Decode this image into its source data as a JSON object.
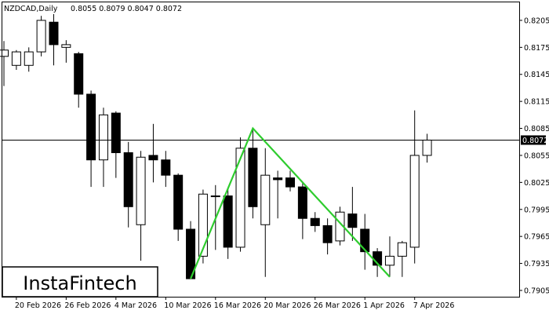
{
  "header": {
    "symbol_label": "NZDCAD,Daily",
    "ohlc_label": "0.8055 0.8079 0.8047 0.8072"
  },
  "brand": {
    "logo_text": "InstaFintech"
  },
  "price_tag": {
    "label": "0.8072"
  },
  "colors": {
    "bull_candle": "#ffffff",
    "bear_candle": "#000000",
    "pattern_line": "#2ecc2e",
    "price_tag_bg": "#000000"
  },
  "chart_data": {
    "type": "candlestick",
    "symbol": "NZDCAD",
    "timeframe": "Daily",
    "ylim": [
      0.7898,
      0.8225
    ],
    "y_ticks": [
      0.8205,
      0.8175,
      0.8145,
      0.8115,
      0.8085,
      0.8055,
      0.8025,
      0.7995,
      0.7965,
      0.7935,
      0.7905
    ],
    "y_tick_labels": [
      "0.8205",
      "0.8175",
      "0.8145",
      "0.8115",
      "0.8085",
      "0.8055",
      "0.8025",
      "0.7995",
      "0.7965",
      "0.7935",
      "0.7905"
    ],
    "x_tick_labels": [
      {
        "label": "20 Feb 2026",
        "index": 1
      },
      {
        "label": "26 Feb 2026",
        "index": 5
      },
      {
        "label": "4 Mar 2026",
        "index": 9
      },
      {
        "label": "10 Mar 2026",
        "index": 13
      },
      {
        "label": "16 Mar 2026",
        "index": 17
      },
      {
        "label": "20 Mar 2026",
        "index": 21
      },
      {
        "label": "26 Mar 2026",
        "index": 25
      },
      {
        "label": "1 Apr 2026",
        "index": 29
      },
      {
        "label": "7 Apr 2026",
        "index": 33
      }
    ],
    "current_price": 0.8072,
    "candles": [
      {
        "o": 0.8165,
        "h": 0.8182,
        "l": 0.8132,
        "c": 0.8172
      },
      {
        "o": 0.8155,
        "h": 0.8172,
        "l": 0.815,
        "c": 0.817
      },
      {
        "o": 0.8155,
        "h": 0.8175,
        "l": 0.8148,
        "c": 0.817
      },
      {
        "o": 0.817,
        "h": 0.821,
        "l": 0.8165,
        "c": 0.8205
      },
      {
        "o": 0.8203,
        "h": 0.8212,
        "l": 0.8155,
        "c": 0.8178
      },
      {
        "o": 0.8175,
        "h": 0.8183,
        "l": 0.8158,
        "c": 0.8178
      },
      {
        "o": 0.8168,
        "h": 0.817,
        "l": 0.8108,
        "c": 0.8123
      },
      {
        "o": 0.8123,
        "h": 0.8127,
        "l": 0.802,
        "c": 0.805
      },
      {
        "o": 0.805,
        "h": 0.8108,
        "l": 0.802,
        "c": 0.81
      },
      {
        "o": 0.8102,
        "h": 0.8104,
        "l": 0.803,
        "c": 0.8058
      },
      {
        "o": 0.8058,
        "h": 0.807,
        "l": 0.7975,
        "c": 0.7998
      },
      {
        "o": 0.7978,
        "h": 0.806,
        "l": 0.7938,
        "c": 0.8053
      },
      {
        "o": 0.8055,
        "h": 0.809,
        "l": 0.8025,
        "c": 0.805
      },
      {
        "o": 0.805,
        "h": 0.806,
        "l": 0.802,
        "c": 0.8033
      },
      {
        "o": 0.8033,
        "h": 0.8035,
        "l": 0.796,
        "c": 0.7973
      },
      {
        "o": 0.7973,
        "h": 0.7982,
        "l": 0.7918,
        "c": 0.7918
      },
      {
        "o": 0.7943,
        "h": 0.8017,
        "l": 0.7935,
        "c": 0.8012
      },
      {
        "o": 0.801,
        "h": 0.8022,
        "l": 0.795,
        "c": 0.801
      },
      {
        "o": 0.801,
        "h": 0.8018,
        "l": 0.794,
        "c": 0.7953
      },
      {
        "o": 0.7953,
        "h": 0.8075,
        "l": 0.7948,
        "c": 0.8063
      },
      {
        "o": 0.8063,
        "h": 0.8085,
        "l": 0.7985,
        "c": 0.7998
      },
      {
        "o": 0.7978,
        "h": 0.8063,
        "l": 0.792,
        "c": 0.8033
      },
      {
        "o": 0.803,
        "h": 0.8038,
        "l": 0.7985,
        "c": 0.8028
      },
      {
        "o": 0.803,
        "h": 0.8038,
        "l": 0.8015,
        "c": 0.802
      },
      {
        "o": 0.802,
        "h": 0.8025,
        "l": 0.7962,
        "c": 0.7985
      },
      {
        "o": 0.7985,
        "h": 0.7992,
        "l": 0.797,
        "c": 0.7977
      },
      {
        "o": 0.7977,
        "h": 0.7985,
        "l": 0.7945,
        "c": 0.7958
      },
      {
        "o": 0.796,
        "h": 0.7998,
        "l": 0.7955,
        "c": 0.7992
      },
      {
        "o": 0.799,
        "h": 0.802,
        "l": 0.796,
        "c": 0.7975
      },
      {
        "o": 0.7973,
        "h": 0.799,
        "l": 0.7928,
        "c": 0.7948
      },
      {
        "o": 0.7948,
        "h": 0.7952,
        "l": 0.792,
        "c": 0.7933
      },
      {
        "o": 0.7933,
        "h": 0.7965,
        "l": 0.792,
        "c": 0.7943
      },
      {
        "o": 0.7943,
        "h": 0.796,
        "l": 0.792,
        "c": 0.7958
      },
      {
        "o": 0.7953,
        "h": 0.8105,
        "l": 0.7935,
        "c": 0.8055
      },
      {
        "o": 0.8055,
        "h": 0.8079,
        "l": 0.8047,
        "c": 0.8072
      }
    ],
    "pattern_line": [
      {
        "index": 15,
        "price": 0.7918
      },
      {
        "index": 20,
        "price": 0.8085
      },
      {
        "index": 31,
        "price": 0.792
      }
    ]
  }
}
